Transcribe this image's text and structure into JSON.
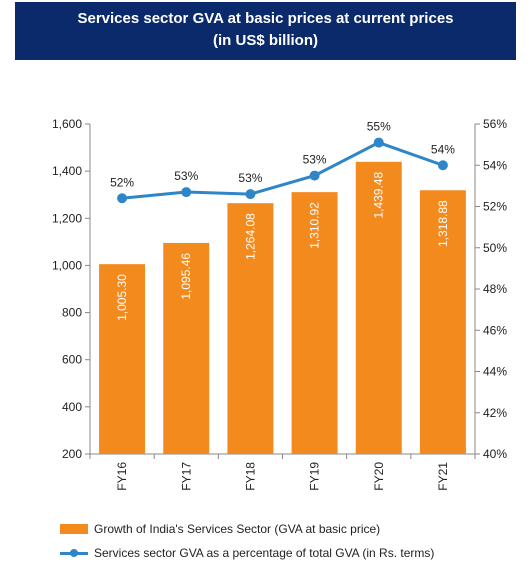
{
  "title": {
    "line1": "Services sector GVA at basic prices at current prices",
    "line2": "(in US$ billion)"
  },
  "colors": {
    "title_bg": "#0b2a6b",
    "bar": "#f28a1e",
    "line": "#2e86c8",
    "axis": "#888888",
    "bar_label": "#ffffff",
    "text": "#222222"
  },
  "chart_data": {
    "type": "bar",
    "categories": [
      "FY16",
      "FY17",
      "FY18",
      "FY19",
      "FY20",
      "FY21"
    ],
    "series": [
      {
        "name": "Growth of India's Services Sector (GVA at basic price)",
        "type": "bar",
        "axis": "left",
        "values": [
          1005.3,
          1095.46,
          1264.08,
          1310.92,
          1439.48,
          1318.88
        ],
        "value_labels": [
          "1,005.30",
          "1,095.46",
          "1,264.08",
          "1,310.92",
          "1,439.48",
          "1,318.88"
        ]
      },
      {
        "name": "Services sector GVA as a percentage of total GVA (in Rs. terms)",
        "type": "line",
        "axis": "right",
        "values": [
          52.4,
          52.7,
          52.6,
          53.5,
          55.1,
          54.0
        ],
        "value_labels": [
          "52%",
          "53%",
          "53%",
          "53%",
          "55%",
          "54%"
        ]
      }
    ],
    "y_left": {
      "lim": [
        200,
        1600
      ],
      "ticks": [
        200,
        400,
        600,
        800,
        1000,
        1200,
        1400,
        1600
      ],
      "tick_labels": [
        "200",
        "400",
        "600",
        "800",
        "1,000",
        "1,200",
        "1,400",
        "1,600"
      ]
    },
    "y_right": {
      "lim": [
        40,
        56
      ],
      "ticks": [
        40,
        42,
        44,
        46,
        48,
        50,
        52,
        54,
        56
      ],
      "tick_labels": [
        "40%",
        "42%",
        "44%",
        "46%",
        "48%",
        "50%",
        "52%",
        "54%",
        "56%"
      ]
    },
    "grid": false,
    "legend_position": "bottom"
  }
}
